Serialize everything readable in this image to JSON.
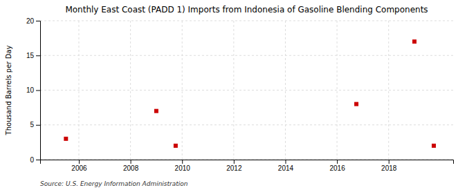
{
  "chart_data": {
    "type": "scatter",
    "title": "Monthly East Coast (PADD 1) Imports from Indonesia of Gasoline Blending Components",
    "ylabel": "Thousand Barrels per Day",
    "annotations": [
      "Source: U.S. Energy Information Administration"
    ],
    "x": [
      2005.5,
      2009.0,
      2009.75,
      2016.75,
      2019.0,
      2019.75
    ],
    "values": [
      3,
      7,
      2,
      8,
      17,
      2
    ],
    "xlim": [
      2004.5,
      2020.5
    ],
    "ylim": [
      0,
      20
    ],
    "xticks": [
      2006,
      2008,
      2010,
      2012,
      2014,
      2016,
      2018
    ],
    "yticks": [
      0,
      5,
      10,
      15,
      20
    ],
    "color": "#cc0000",
    "marker": "square",
    "grid": true
  }
}
